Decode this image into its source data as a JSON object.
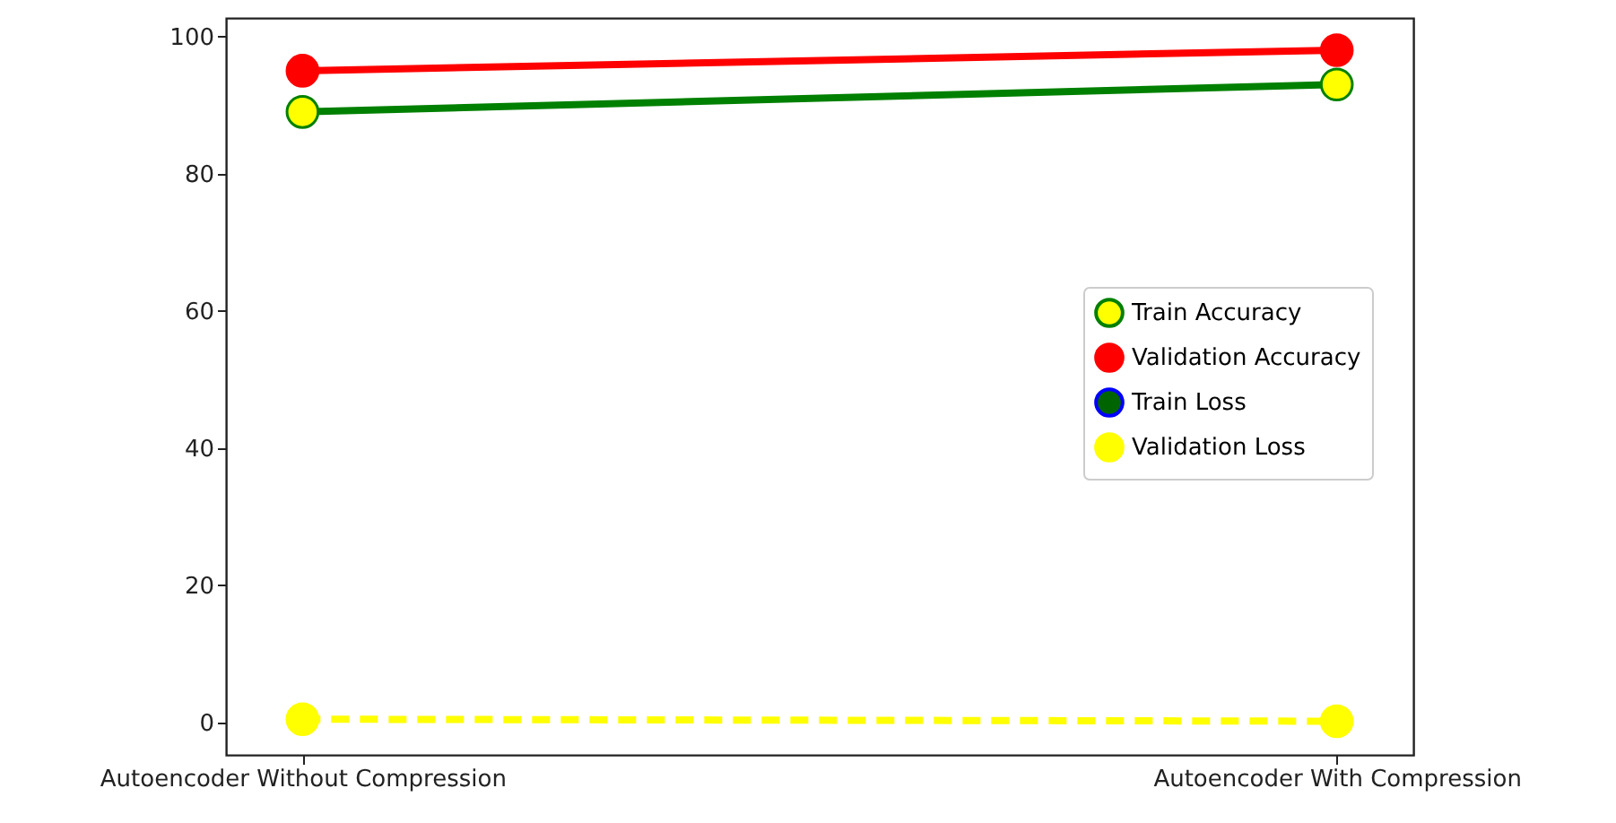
{
  "chart_data": {
    "type": "line",
    "categories": [
      "Autoencoder Without Compression",
      "Autoencoder With Compression"
    ],
    "series": [
      {
        "name": "Train Accuracy",
        "color": "#008000",
        "colors": [
          "#ffff00",
          "#ffff00"
        ],
        "line_style": "solid",
        "values": [
          89,
          93
        ]
      },
      {
        "name": "Validation Accuracy",
        "color": "#ff0000",
        "colors": [
          "#ff0000",
          "#ff0000"
        ],
        "line_style": "solid",
        "values": [
          95,
          98
        ]
      },
      {
        "name": "Train Loss",
        "color": "#0000ff",
        "colors": [
          "#006400",
          "#006400"
        ],
        "line_style": "dashed",
        "values": [
          null,
          null
        ]
      },
      {
        "name": "Validation Loss",
        "color": "#ffff00",
        "colors": [
          "#ffff00",
          "#ffff00"
        ],
        "line_style": "dashed",
        "values": [
          0.5,
          0.2
        ]
      }
    ],
    "ylim": [
      -4.7,
      102.7
    ],
    "yticks": [
      0,
      20,
      40,
      60,
      80,
      100
    ],
    "marker": "circle",
    "grid": false,
    "legend": "right"
  }
}
